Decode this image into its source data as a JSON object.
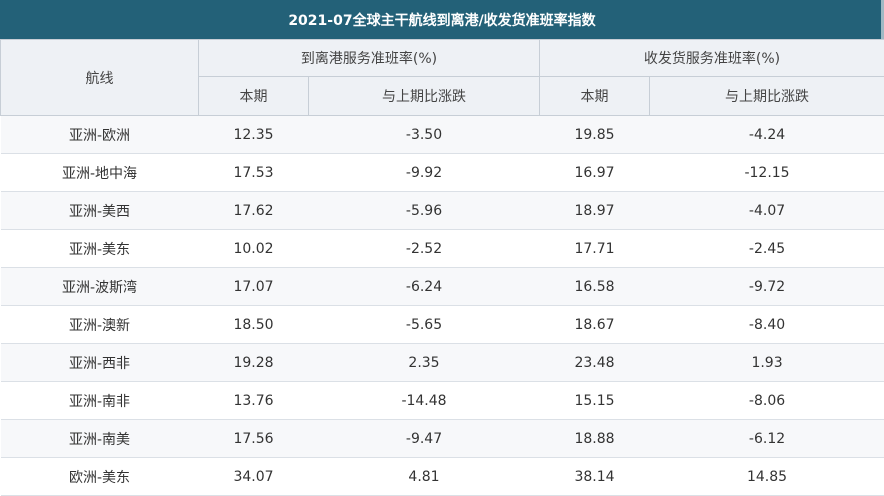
{
  "title": "2021-07全球主干航线到离港/收发货准班率指数",
  "header": {
    "route": "航线",
    "group1": "到离港服务准班率(%)",
    "group2": "收发货服务准班率(%)",
    "current": "本期",
    "change": "与上期比涨跌"
  },
  "rows": [
    {
      "route": "亚洲-欧洲",
      "arr_cur": "12.35",
      "arr_chg": "-3.50",
      "cargo_cur": "19.85",
      "cargo_chg": "-4.24"
    },
    {
      "route": "亚洲-地中海",
      "arr_cur": "17.53",
      "arr_chg": "-9.92",
      "cargo_cur": "16.97",
      "cargo_chg": "-12.15"
    },
    {
      "route": "亚洲-美西",
      "arr_cur": "17.62",
      "arr_chg": "-5.96",
      "cargo_cur": "18.97",
      "cargo_chg": "-4.07"
    },
    {
      "route": "亚洲-美东",
      "arr_cur": "10.02",
      "arr_chg": "-2.52",
      "cargo_cur": "17.71",
      "cargo_chg": "-2.45"
    },
    {
      "route": "亚洲-波斯湾",
      "arr_cur": "17.07",
      "arr_chg": "-6.24",
      "cargo_cur": "16.58",
      "cargo_chg": "-9.72"
    },
    {
      "route": "亚洲-澳新",
      "arr_cur": "18.50",
      "arr_chg": "-5.65",
      "cargo_cur": "18.67",
      "cargo_chg": "-8.40"
    },
    {
      "route": "亚洲-西非",
      "arr_cur": "19.28",
      "arr_chg": "2.35",
      "cargo_cur": "23.48",
      "cargo_chg": "1.93"
    },
    {
      "route": "亚洲-南非",
      "arr_cur": "13.76",
      "arr_chg": "-14.48",
      "cargo_cur": "15.15",
      "cargo_chg": "-8.06"
    },
    {
      "route": "亚洲-南美",
      "arr_cur": "17.56",
      "arr_chg": "-9.47",
      "cargo_cur": "18.88",
      "cargo_chg": "-6.12"
    },
    {
      "route": "欧洲-美东",
      "arr_cur": "34.07",
      "arr_chg": "4.81",
      "cargo_cur": "38.14",
      "cargo_chg": "14.85"
    }
  ]
}
